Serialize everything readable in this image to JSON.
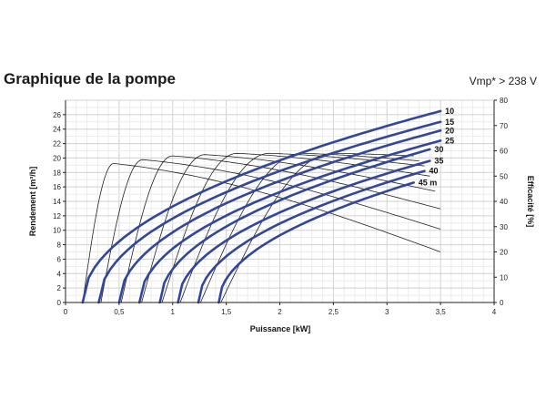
{
  "header": {
    "title": "Graphique de la pompe",
    "subtitle": "Vmp* > 238 V"
  },
  "chart_data": {
    "type": "line",
    "xlabel": "Puissance [kW]",
    "ylabel": "Rendement [m³/h]",
    "y2label": "Efficacité [%]",
    "xlim": [
      0,
      4
    ],
    "ylim": [
      0,
      28
    ],
    "y2lim": [
      0,
      80
    ],
    "x_ticks": [
      "0",
      "0,5",
      "1",
      "1,5",
      "2",
      "2,5",
      "3",
      "3,5",
      "4"
    ],
    "y_ticks": [
      "0",
      "2",
      "4",
      "6",
      "8",
      "10",
      "12",
      "14",
      "16",
      "18",
      "20",
      "22",
      "24",
      "26"
    ],
    "y2_ticks": [
      "0",
      "10",
      "20",
      "30",
      "40",
      "50",
      "60",
      "70",
      "80"
    ],
    "grid": true,
    "flow_series": [
      {
        "name": "10",
        "label": "10",
        "x_start": 0.16,
        "x_end": 3.5,
        "y_end": 26.5
      },
      {
        "name": "15",
        "label": "15",
        "x_start": 0.31,
        "x_end": 3.5,
        "y_end": 25.0
      },
      {
        "name": "20",
        "label": "20",
        "x_start": 0.5,
        "x_end": 3.5,
        "y_end": 23.8
      },
      {
        "name": "25",
        "label": "25",
        "x_start": 0.69,
        "x_end": 3.5,
        "y_end": 22.4
      },
      {
        "name": "30",
        "label": "30",
        "x_start": 0.88,
        "x_end": 3.4,
        "y_end": 21.2
      },
      {
        "name": "35",
        "label": "35",
        "x_start": 1.05,
        "x_end": 3.4,
        "y_end": 19.6
      },
      {
        "name": "40",
        "label": "40",
        "x_start": 1.24,
        "x_end": 3.35,
        "y_end": 18.2
      },
      {
        "name": "45 m",
        "label": "45 m",
        "x_start": 1.43,
        "x_end": 3.25,
        "y_end": 16.6
      }
    ],
    "efficiency_series": [
      {
        "name": "10",
        "x_start": 0.16,
        "x_peak": 0.45,
        "y_peak": 55,
        "x_end": 3.5,
        "y_end": 20
      },
      {
        "name": "15",
        "x_start": 0.33,
        "x_peak": 0.72,
        "y_peak": 56.5,
        "x_end": 3.5,
        "y_end": 29
      },
      {
        "name": "20",
        "x_start": 0.52,
        "x_peak": 1.0,
        "y_peak": 58,
        "x_end": 3.5,
        "y_end": 37
      },
      {
        "name": "25",
        "x_start": 0.71,
        "x_peak": 1.3,
        "y_peak": 58.5,
        "x_end": 3.45,
        "y_end": 44
      },
      {
        "name": "30",
        "x_start": 0.9,
        "x_peak": 1.6,
        "y_peak": 59,
        "x_end": 3.4,
        "y_end": 50
      },
      {
        "name": "35",
        "x_start": 1.07,
        "x_peak": 1.9,
        "y_peak": 59,
        "x_end": 3.35,
        "y_end": 54
      },
      {
        "name": "40",
        "x_start": 1.26,
        "x_peak": 2.2,
        "y_peak": 59,
        "x_end": 3.3,
        "y_end": 56
      },
      {
        "name": "45 m",
        "x_start": 1.45,
        "x_peak": 2.5,
        "y_peak": 59,
        "x_end": 3.25,
        "y_end": 58
      }
    ]
  }
}
